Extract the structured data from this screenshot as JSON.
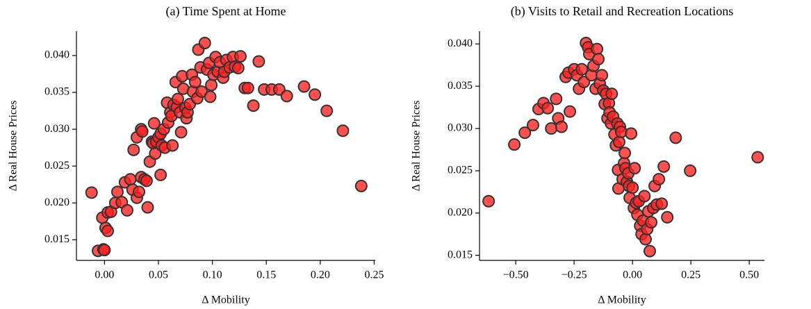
{
  "chart_data": [
    {
      "type": "scatter",
      "title": "(a) Time Spent at Home",
      "x_label": "Δ Mobility",
      "y_label": "Δ Real House Prices",
      "color": "#ff1f1f",
      "xlim": [
        -0.026,
        0.251
      ],
      "ylim": [
        0.0122,
        0.0433
      ],
      "xticks": [
        {
          "value": 0,
          "label": "0.00"
        },
        0.05,
        {
          "value": 0.1,
          "label": "0.10"
        },
        0.15,
        {
          "value": 0.2,
          "label": "0.20"
        },
        0.25
      ],
      "yticks": [
        0.015,
        {
          "value": 0.02,
          "label": "0.020"
        },
        0.025,
        {
          "value": 0.03,
          "label": "0.030"
        },
        0.035,
        {
          "value": 0.04,
          "label": "0.040"
        }
      ],
      "x": [
        -0.012,
        -0.006,
        -0.001,
        0.0,
        -0.002,
        0.001,
        0.003,
        0.003,
        0.006,
        0.01,
        0.012,
        0.016,
        0.019,
        0.021,
        0.024,
        0.026,
        0.027,
        0.03,
        0.03,
        0.032,
        0.034,
        0.035,
        0.034,
        0.037,
        0.039,
        0.04,
        0.042,
        0.044,
        0.045,
        0.046,
        0.047,
        0.048,
        0.05,
        0.052,
        0.052,
        0.053,
        0.055,
        0.056,
        0.058,
        0.059,
        0.061,
        0.062,
        0.063,
        0.064,
        0.066,
        0.067,
        0.068,
        0.07,
        0.071,
        0.072,
        0.073,
        0.075,
        0.076,
        0.077,
        0.079,
        0.081,
        0.082,
        0.084,
        0.086,
        0.087,
        0.089,
        0.09,
        0.093,
        0.095,
        0.097,
        0.098,
        0.099,
        0.101,
        0.103,
        0.105,
        0.107,
        0.11,
        0.111,
        0.113,
        0.116,
        0.119,
        0.121,
        0.124,
        0.126,
        0.13,
        0.133,
        0.138,
        0.143,
        0.148,
        0.155,
        0.162,
        0.169,
        0.185,
        0.195,
        0.206,
        0.221,
        0.238
      ],
      "y": [
        0.0214,
        0.0135,
        0.0137,
        0.0136,
        0.018,
        0.0166,
        0.0162,
        0.0187,
        0.0188,
        0.02,
        0.0215,
        0.0201,
        0.0228,
        0.019,
        0.0232,
        0.0218,
        0.0272,
        0.0289,
        0.0207,
        0.0215,
        0.03,
        0.0297,
        0.0235,
        0.0232,
        0.023,
        0.0194,
        0.0256,
        0.0283,
        0.0281,
        0.0308,
        0.0267,
        0.0283,
        0.0289,
        0.0238,
        0.0294,
        0.0278,
        0.03,
        0.0275,
        0.0336,
        0.0309,
        0.0323,
        0.0318,
        0.0278,
        0.0333,
        0.0364,
        0.033,
        0.0341,
        0.0323,
        0.0296,
        0.0372,
        0.0355,
        0.0329,
        0.0315,
        0.0323,
        0.0334,
        0.0374,
        0.0351,
        0.0364,
        0.0342,
        0.0408,
        0.0384,
        0.0351,
        0.0417,
        0.0381,
        0.039,
        0.0344,
        0.036,
        0.0374,
        0.0398,
        0.0378,
        0.0391,
        0.037,
        0.0378,
        0.0394,
        0.0384,
        0.0398,
        0.0385,
        0.0383,
        0.0399,
        0.0356,
        0.0356,
        0.0332,
        0.0392,
        0.0354,
        0.0354,
        0.0354,
        0.0345,
        0.0358,
        0.0347,
        0.0325,
        0.0298,
        0.0223
      ]
    },
    {
      "type": "scatter",
      "title": "(b) Visits to Retail and Recreation Locations",
      "x_label": "Δ Mobility",
      "y_label": "Δ Real House Prices",
      "color": "#ff1f1f",
      "xlim": [
        -0.655,
        0.565
      ],
      "ylim": [
        0.0144,
        0.0415
      ],
      "xticks": [
        {
          "value": -0.5,
          "label": "−0.50"
        },
        {
          "value": -0.25,
          "label": "−0.25"
        },
        {
          "value": 0,
          "label": "0.00"
        },
        0.25,
        {
          "value": 0.5,
          "label": "0.50"
        }
      ],
      "yticks": [
        0.015,
        {
          "value": 0.02,
          "label": "0.020"
        },
        0.025,
        {
          "value": 0.03,
          "label": "0.030"
        },
        0.035,
        {
          "value": 0.04,
          "label": "0.040"
        }
      ],
      "x": [
        -0.616,
        -0.506,
        -0.461,
        -0.426,
        -0.402,
        -0.381,
        -0.363,
        -0.348,
        -0.327,
        -0.318,
        -0.304,
        -0.286,
        -0.274,
        -0.268,
        -0.25,
        -0.238,
        -0.229,
        -0.217,
        -0.208,
        -0.199,
        -0.19,
        -0.185,
        -0.176,
        -0.167,
        -0.158,
        -0.152,
        -0.146,
        -0.14,
        -0.131,
        -0.125,
        -0.119,
        -0.113,
        -0.107,
        -0.101,
        -0.098,
        -0.092,
        -0.089,
        -0.083,
        -0.077,
        -0.071,
        -0.065,
        -0.062,
        -0.06,
        -0.057,
        -0.054,
        -0.048,
        -0.042,
        -0.036,
        -0.033,
        -0.03,
        -0.024,
        -0.018,
        -0.015,
        -0.012,
        -0.006,
        0.0,
        0.006,
        0.009,
        0.015,
        0.021,
        0.027,
        0.033,
        0.039,
        0.045,
        0.051,
        0.056,
        0.063,
        0.068,
        0.074,
        0.08,
        0.089,
        0.095,
        0.104,
        0.113,
        0.125,
        0.134,
        0.149,
        0.185,
        0.247,
        0.536
      ],
      "y": [
        0.0214,
        0.0281,
        0.0295,
        0.0304,
        0.0323,
        0.033,
        0.0324,
        0.03,
        0.0335,
        0.0312,
        0.0302,
        0.0361,
        0.0366,
        0.032,
        0.037,
        0.0363,
        0.0347,
        0.037,
        0.0355,
        0.0401,
        0.0396,
        0.0388,
        0.0363,
        0.0374,
        0.0347,
        0.0394,
        0.0382,
        0.0353,
        0.0363,
        0.0345,
        0.0329,
        0.0341,
        0.0312,
        0.033,
        0.0319,
        0.0306,
        0.0341,
        0.0314,
        0.0293,
        0.028,
        0.0306,
        0.0251,
        0.0229,
        0.0284,
        0.0302,
        0.0296,
        0.024,
        0.0259,
        0.0271,
        0.0253,
        0.0237,
        0.0247,
        0.0232,
        0.0218,
        0.0294,
        0.023,
        0.0206,
        0.0253,
        0.0212,
        0.0198,
        0.0214,
        0.0185,
        0.0175,
        0.0191,
        0.022,
        0.0169,
        0.0181,
        0.0202,
        0.0155,
        0.0189,
        0.0206,
        0.0232,
        0.021,
        0.024,
        0.0211,
        0.0255,
        0.0195,
        0.0289,
        0.025,
        0.0266
      ]
    }
  ]
}
